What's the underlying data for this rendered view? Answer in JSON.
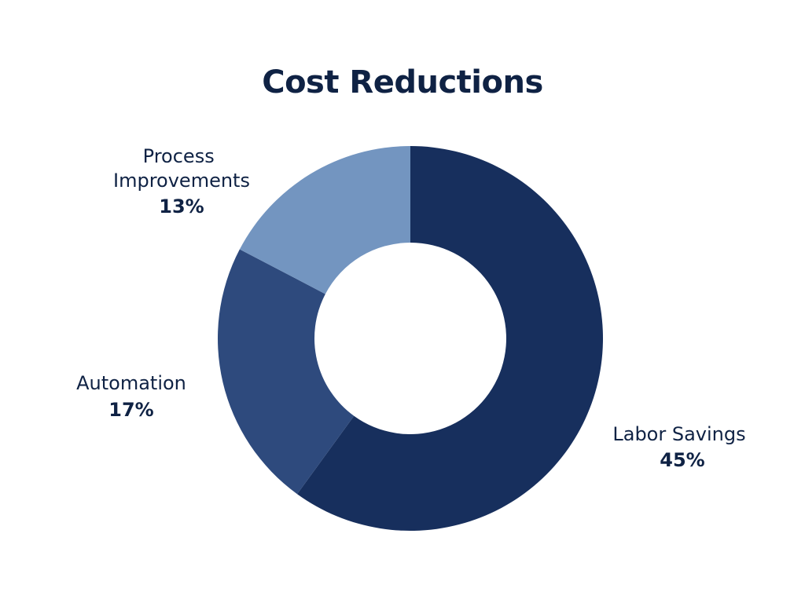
{
  "chart_data": {
    "type": "pie",
    "title": "Cost Reductions",
    "categories": [
      "Labor Savings",
      "Automation",
      "Process Improvements"
    ],
    "values": [
      45,
      17,
      13
    ],
    "value_labels": [
      "45%",
      "17%",
      "13%"
    ],
    "colors": [
      "#172f5d",
      "#2e4a7d",
      "#7395c0"
    ],
    "background_color": "#ffffff",
    "text_color": "#0f2244",
    "donut": true,
    "legend": "none"
  }
}
